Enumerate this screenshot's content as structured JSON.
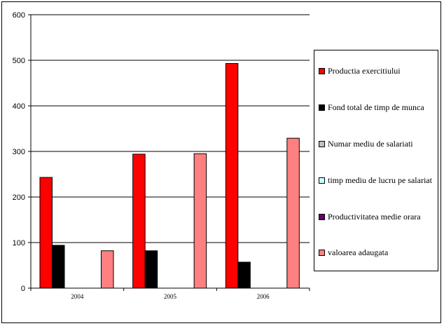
{
  "chart_data": {
    "type": "bar",
    "categories": [
      "2004",
      "2005",
      "2006"
    ],
    "series": [
      {
        "name": "Productia exercitiului",
        "color": "#ff0000",
        "values": [
          243,
          294,
          493
        ]
      },
      {
        "name": "Fond total de timp de munca",
        "color": "#000000",
        "values": [
          94,
          82,
          57
        ]
      },
      {
        "name": "Numar mediu de salariati",
        "color": "#c0c0c0",
        "values": [
          0,
          0,
          0
        ]
      },
      {
        "name": "timp mediu de lucru pe salariat",
        "color": "#ccffff",
        "values": [
          0,
          0,
          0
        ]
      },
      {
        "name": "Productivitatea medie orara",
        "color": "#660066",
        "values": [
          0,
          0,
          0
        ]
      },
      {
        "name": "valoarea adaugata",
        "color": "#ff8080",
        "values": [
          82,
          295,
          329
        ]
      }
    ],
    "y_ticks": [
      "0",
      "100",
      "200",
      "300",
      "400",
      "500",
      "600"
    ],
    "ylim": [
      0,
      600
    ],
    "grid": true,
    "legend_position": "right"
  }
}
